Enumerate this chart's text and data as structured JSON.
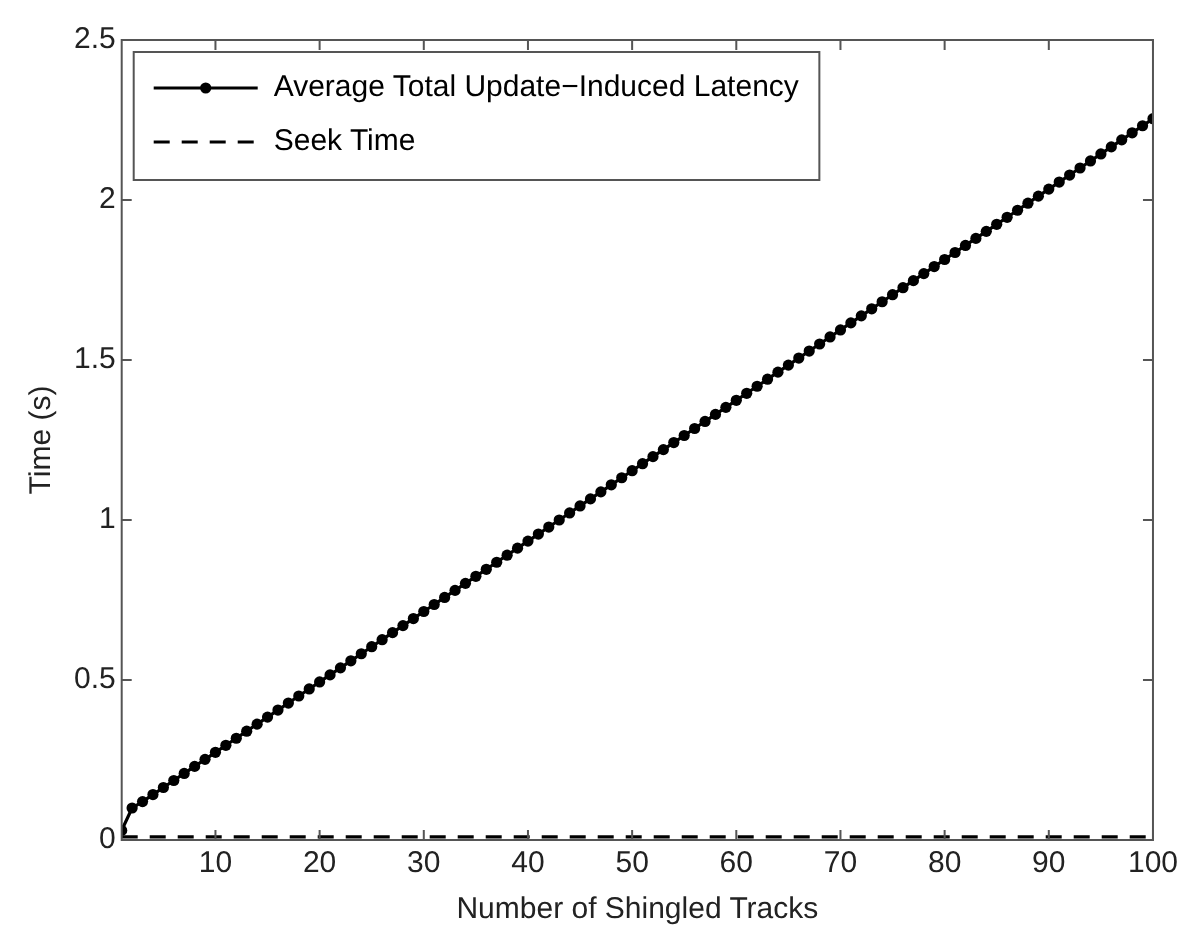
{
  "chart_data": {
    "type": "line",
    "xlabel": "Number of Shingled Tracks",
    "ylabel": "Time (s)",
    "xlim": [
      1,
      100
    ],
    "xticks": [
      10,
      20,
      30,
      40,
      50,
      60,
      70,
      80,
      90,
      100
    ],
    "ylim": [
      0,
      2.5
    ],
    "yticks": [
      0,
      0.5,
      1,
      1.5,
      2,
      2.5
    ],
    "grid": false,
    "legend": "top left",
    "series": [
      {
        "name": "Average Total Update−Induced Latency",
        "color": "#000000",
        "marker": "circle",
        "line_style": "solid",
        "x": [
          1,
          2,
          3,
          4,
          5,
          6,
          7,
          8,
          9,
          10,
          11,
          12,
          13,
          14,
          15,
          16,
          17,
          18,
          19,
          20,
          21,
          22,
          23,
          24,
          25,
          26,
          27,
          28,
          29,
          30,
          31,
          32,
          33,
          34,
          35,
          36,
          37,
          38,
          39,
          40,
          41,
          42,
          43,
          44,
          45,
          46,
          47,
          48,
          49,
          50,
          51,
          52,
          53,
          54,
          55,
          56,
          57,
          58,
          59,
          60,
          61,
          62,
          63,
          64,
          65,
          66,
          67,
          68,
          69,
          70,
          71,
          72,
          73,
          74,
          75,
          76,
          77,
          78,
          79,
          80,
          81,
          82,
          83,
          84,
          85,
          86,
          87,
          88,
          89,
          90,
          91,
          92,
          93,
          94,
          95,
          96,
          97,
          98,
          99,
          100
        ],
        "values": [
          0.03,
          0.1,
          0.12,
          0.142,
          0.164,
          0.186,
          0.208,
          0.23,
          0.252,
          0.274,
          0.296,
          0.318,
          0.34,
          0.362,
          0.384,
          0.406,
          0.428,
          0.45,
          0.472,
          0.494,
          0.516,
          0.538,
          0.56,
          0.582,
          0.604,
          0.626,
          0.648,
          0.67,
          0.692,
          0.714,
          0.736,
          0.758,
          0.78,
          0.802,
          0.824,
          0.846,
          0.868,
          0.89,
          0.912,
          0.934,
          0.956,
          0.978,
          1.0,
          1.022,
          1.044,
          1.066,
          1.088,
          1.11,
          1.132,
          1.154,
          1.176,
          1.198,
          1.22,
          1.242,
          1.264,
          1.286,
          1.308,
          1.33,
          1.352,
          1.374,
          1.396,
          1.418,
          1.44,
          1.462,
          1.484,
          1.506,
          1.528,
          1.55,
          1.572,
          1.594,
          1.616,
          1.638,
          1.66,
          1.682,
          1.704,
          1.726,
          1.748,
          1.77,
          1.792,
          1.814,
          1.836,
          1.858,
          1.88,
          1.902,
          1.924,
          1.946,
          1.968,
          1.99,
          2.012,
          2.034,
          2.056,
          2.078,
          2.1,
          2.122,
          2.144,
          2.166,
          2.188,
          2.21,
          2.232,
          2.254
        ]
      },
      {
        "name": "Seek Time",
        "color": "#000000",
        "marker": "none",
        "line_style": "dashed",
        "x": [
          1,
          100
        ],
        "values": [
          0.01,
          0.01
        ]
      }
    ]
  }
}
